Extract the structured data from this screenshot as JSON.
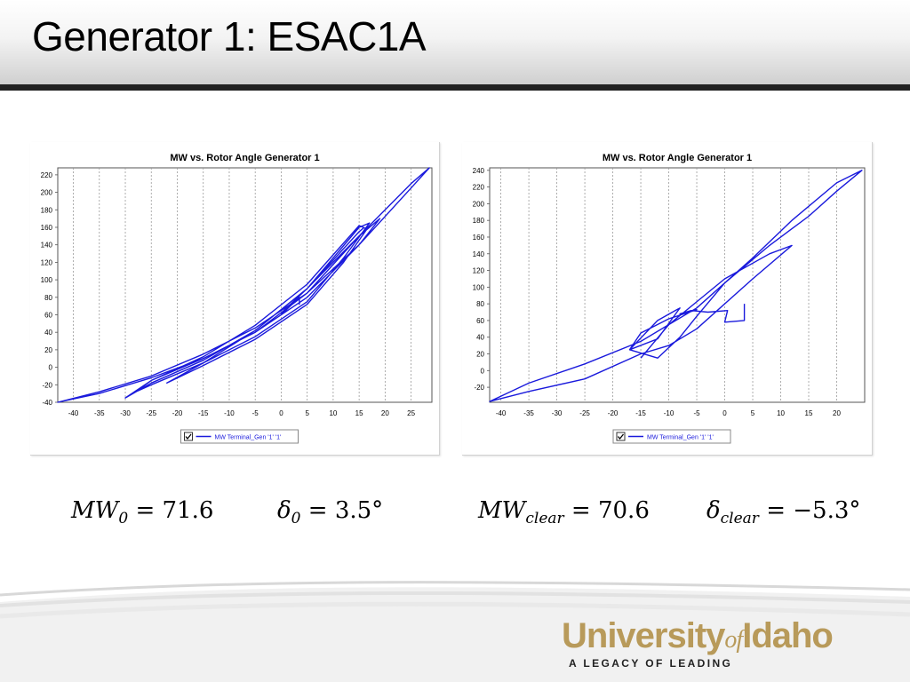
{
  "slide": {
    "title": "Generator 1: ESAC1A",
    "colors": {
      "series": "#1a1adc",
      "grid": "#9a9a9a",
      "logo_gold": "#b89a5a"
    }
  },
  "formulas": {
    "mw0": {
      "sym": "MW",
      "sub": "0",
      "eq": " = ",
      "val": "71.6"
    },
    "d0": {
      "sym": "δ",
      "sub": "0",
      "eq": " = ",
      "val": "3.5°"
    },
    "mwclear": {
      "sym": "MW",
      "sub": "clear",
      "eq": " = ",
      "val": "70.6"
    },
    "dclear": {
      "sym": "δ",
      "sub": "clear",
      "eq": " = ",
      "val": "−5.3°"
    }
  },
  "logo": {
    "word_main": "University",
    "word_of": "of",
    "word_end": "Idaho",
    "tagline": "A LEGACY OF LEADING"
  },
  "chart_data": [
    {
      "type": "line",
      "title": "MW vs. Rotor Angle Generator 1",
      "xlabel": "",
      "ylabel": "",
      "xlim": [
        -43,
        29
      ],
      "ylim": [
        -40,
        228
      ],
      "xticks": [
        -40,
        -35,
        -30,
        -25,
        -20,
        -15,
        -10,
        -5,
        0,
        5,
        10,
        15,
        20,
        25
      ],
      "yticks": [
        -40,
        -20,
        0,
        20,
        40,
        60,
        80,
        100,
        120,
        140,
        160,
        180,
        200,
        220
      ],
      "grid": "vertical dashed",
      "legend": {
        "placement": "bottom-center",
        "checked": true,
        "label": "MW Terminal_Gen '1' '1'"
      },
      "series": [
        {
          "name": "MW Terminal_Gen '1' '1'",
          "x": [
            3.5,
            3.5,
            0.0,
            0.5,
            5.0,
            15.0,
            25.0,
            28.5,
            25.0,
            15.0,
            5.0,
            -5.0,
            -15.0,
            -25.0,
            -35.0,
            -43.0,
            -35.0,
            -25.0,
            -15.0,
            -5.0,
            5.0,
            15.0,
            19.0,
            15.0,
            5.0,
            -5.0,
            -15.0,
            -25.0,
            -30.0,
            -25.0,
            -15.0,
            -5.0,
            5.0,
            15.0,
            17.0,
            12.0,
            5.0,
            -5.0,
            -15.0,
            -25.0,
            -28.0,
            -25.0,
            -15.0,
            -5.0,
            5.0,
            15.0,
            16.5,
            12.0,
            5.0,
            -5.0,
            -15.0,
            -22.0,
            -15.0,
            -5.0,
            5.0,
            15.0,
            16.0
          ],
          "y": [
            71.6,
            80.0,
            60.0,
            65.0,
            90.0,
            150.0,
            210.0,
            228.0,
            205.0,
            140.0,
            85.0,
            45.0,
            15.0,
            -10.0,
            -28.0,
            -40.0,
            -30.0,
            -12.0,
            10.0,
            40.0,
            85.0,
            150.0,
            170.0,
            140.0,
            80.0,
            40.0,
            10.0,
            -15.0,
            -35.0,
            -18.0,
            8.0,
            42.0,
            90.0,
            160.0,
            165.0,
            125.0,
            75.0,
            35.0,
            5.0,
            -20.0,
            -28.0,
            -15.0,
            12.0,
            48.0,
            95.0,
            162.0,
            158.0,
            120.0,
            72.0,
            32.0,
            2.0,
            -18.0,
            5.0,
            42.0,
            90.0,
            155.0,
            160.0
          ]
        }
      ]
    },
    {
      "type": "line",
      "title": "MW vs. Rotor Angle Generator 1",
      "xlabel": "",
      "ylabel": "",
      "xlim": [
        -42,
        25
      ],
      "ylim": [
        -38,
        243
      ],
      "xticks": [
        -40,
        -35,
        -30,
        -25,
        -20,
        -15,
        -10,
        -5,
        0,
        5,
        10,
        15,
        20
      ],
      "yticks": [
        -20,
        0,
        20,
        40,
        60,
        80,
        100,
        120,
        140,
        160,
        180,
        200,
        220,
        240
      ],
      "grid": "vertical dashed",
      "legend": {
        "placement": "bottom-center",
        "checked": true,
        "label": "MW Terminal_Gen '1' '1'"
      },
      "series": [
        {
          "name": "MW Terminal_Gen '1' '1'",
          "x": [
            3.5,
            3.5,
            0.0,
            0.5,
            -3.0,
            -6.0,
            -8.0,
            -5.0,
            -10.0,
            -15.0,
            -17.0,
            -12.0,
            -8.0,
            -12.0,
            -17.0,
            -12.0,
            -8.0,
            -5.0,
            0.0,
            8.0,
            15.0,
            20.0,
            24.5,
            20.0,
            12.0,
            5.0,
            -5.0,
            -15.0,
            -25.0,
            -35.0,
            -42.0,
            -35.0,
            -25.0,
            -15.0,
            -10.0,
            -5.0,
            5.0,
            12.0,
            8.0,
            0.0,
            -10.0,
            -15.0
          ],
          "y": [
            80.0,
            60.0,
            58.0,
            72.0,
            70.0,
            72.0,
            68.0,
            73.0,
            62.0,
            45.0,
            25.0,
            38.0,
            75.0,
            60.0,
            25.0,
            15.0,
            40.0,
            65.0,
            105.0,
            150.0,
            185.0,
            215.0,
            240.0,
            225.0,
            180.0,
            135.0,
            75.0,
            35.0,
            8.0,
            -15.0,
            -37.0,
            -25.0,
            -10.0,
            20.0,
            30.0,
            50.0,
            110.0,
            150.0,
            140.0,
            110.0,
            55.0,
            15.0
          ]
        }
      ]
    }
  ]
}
